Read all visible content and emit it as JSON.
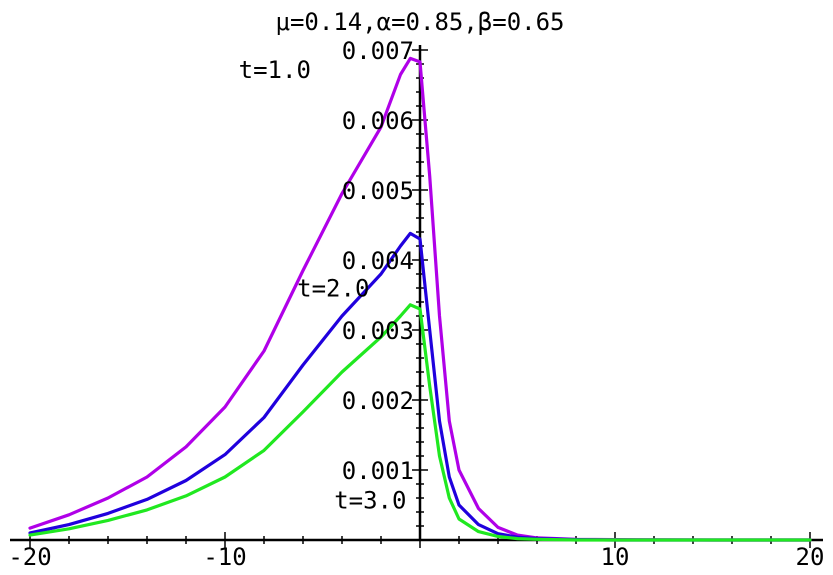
{
  "chart_data": {
    "type": "line",
    "title": "μ=0.14,α=0.85,β=0.65",
    "xlabel": "",
    "ylabel": "",
    "xlim": [
      -20,
      20
    ],
    "ylim": [
      0,
      0.007
    ],
    "x_ticks": [
      -20,
      -10,
      10,
      20
    ],
    "x_tick_labels": [
      "-20",
      "-10",
      "10",
      "20"
    ],
    "y_ticks": [
      0.001,
      0.002,
      0.003,
      0.004,
      0.005,
      0.006,
      0.007
    ],
    "y_tick_labels": [
      "0.001",
      "0.002",
      "0.003",
      "0.004",
      "0.005",
      "0.006",
      "0.007"
    ],
    "grid": false,
    "series": [
      {
        "name": "",
        "color": "#b000e8",
        "x": [
          -20,
          -18,
          -16,
          -14,
          -12,
          -10,
          -8,
          -6,
          -4,
          -2,
          -1,
          -0.5,
          0,
          0.5,
          1,
          1.5,
          2,
          3,
          4,
          5,
          6,
          8,
          10,
          15,
          20
        ],
        "y": [
          0.00017,
          0.00036,
          0.0006,
          0.0009,
          0.00133,
          0.0019,
          0.0027,
          0.00385,
          0.00495,
          0.0059,
          0.00665,
          0.00688,
          0.00683,
          0.0052,
          0.0032,
          0.0017,
          0.001,
          0.00045,
          0.00018,
          7e-05,
          3e-05,
          1e-05,
          5e-06,
          0,
          0
        ]
      },
      {
        "name": "",
        "color": "#2000dd",
        "x": [
          -20,
          -18,
          -16,
          -14,
          -12,
          -10,
          -8,
          -6,
          -4,
          -2,
          -1,
          -0.5,
          0,
          0.5,
          1,
          1.5,
          2,
          3,
          4,
          5,
          6,
          8,
          10,
          15,
          20
        ],
        "y": [
          0.0001,
          0.00022,
          0.00038,
          0.00058,
          0.00085,
          0.00122,
          0.00175,
          0.0025,
          0.0032,
          0.0038,
          0.0042,
          0.00438,
          0.0043,
          0.003,
          0.0017,
          0.0009,
          0.0005,
          0.00022,
          9e-05,
          4e-05,
          2e-05,
          5e-06,
          0,
          0,
          0
        ]
      },
      {
        "name": "",
        "color": "#20e820",
        "x": [
          -20,
          -18,
          -16,
          -14,
          -12,
          -10,
          -8,
          -6,
          -4,
          -2,
          -1,
          -0.5,
          0,
          0.5,
          1,
          1.5,
          2,
          3,
          4,
          5,
          6,
          8,
          10,
          15,
          20
        ],
        "y": [
          7e-05,
          0.00016,
          0.00028,
          0.00043,
          0.00063,
          0.0009,
          0.00128,
          0.00183,
          0.0024,
          0.0029,
          0.0032,
          0.00336,
          0.0033,
          0.0022,
          0.0012,
          0.0006,
          0.0003,
          0.00012,
          5e-05,
          2e-05,
          1e-05,
          0,
          0,
          0,
          0
        ]
      }
    ],
    "annotations": [
      {
        "text": "t=1.0",
        "x": -9.3,
        "y": 0.0066
      },
      {
        "text": "t=2.0",
        "x": -6.3,
        "y": 0.00348
      },
      {
        "text": "t=3.0",
        "x": -4.4,
        "y": 0.00045
      }
    ]
  }
}
